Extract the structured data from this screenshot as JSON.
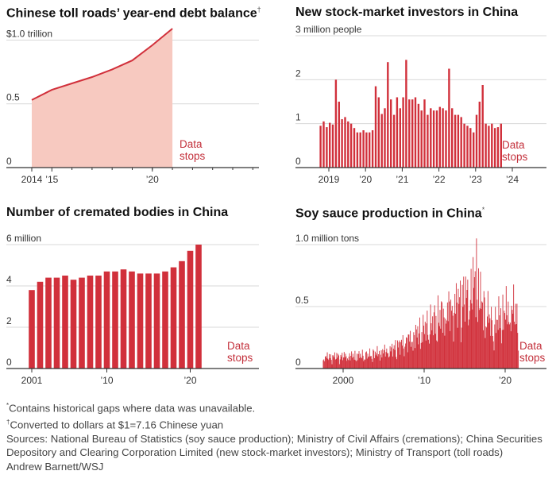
{
  "colors": {
    "accent": "#d1303b",
    "area_fill": "#f7c9c0",
    "grid": "#d9d9d9",
    "axis": "#333333",
    "stops_text": "#c3303b"
  },
  "chart_data": [
    {
      "id": "toll",
      "type": "area",
      "title": "Chinese toll roads’ year-end debt balance",
      "title_mark": "†",
      "unit_label": "$1.0 trillion",
      "y_ticks": [
        {
          "v": 0,
          "label": "0"
        },
        {
          "v": 0.5,
          "label": "0.5"
        },
        {
          "v": 1.0,
          "label": "$1.0 trillion"
        }
      ],
      "x_ticks": [
        {
          "v": 2014,
          "label": "2014"
        },
        {
          "v": 2015,
          "label": "’15"
        },
        {
          "v": 2020,
          "label": "’20"
        }
      ],
      "x": [
        2014,
        2015,
        2016,
        2017,
        2018,
        2019,
        2020,
        2021
      ],
      "y": [
        0.53,
        0.61,
        0.66,
        0.71,
        0.77,
        0.84,
        0.96,
        1.09
      ],
      "ylim": [
        0,
        1.09
      ],
      "stops_label": [
        "Data",
        "stops"
      ]
    },
    {
      "id": "investors",
      "type": "bar",
      "title": "New stock-market investors in China",
      "unit_label": "3 million people",
      "y_ticks": [
        {
          "v": 0,
          "label": "0"
        },
        {
          "v": 1,
          "label": "1"
        },
        {
          "v": 2,
          "label": "2"
        },
        {
          "v": 3,
          "label": "3 million people"
        }
      ],
      "x_ticks": [
        {
          "v": 2019,
          "label": "2019"
        },
        {
          "v": 2020,
          "label": "’20"
        },
        {
          "v": 2021,
          "label": "’21"
        },
        {
          "v": 2022,
          "label": "’22"
        },
        {
          "v": 2023,
          "label": "’23"
        },
        {
          "v": 2024,
          "label": "’24"
        }
      ],
      "x_start": 2018.75,
      "values": [
        0.95,
        1.05,
        0.92,
        1.02,
        0.98,
        2.0,
        1.5,
        1.1,
        1.15,
        1.05,
        1.0,
        0.9,
        0.8,
        0.8,
        0.85,
        0.8,
        0.8,
        0.85,
        1.85,
        1.6,
        1.22,
        1.35,
        2.4,
        1.55,
        1.2,
        1.6,
        1.35,
        1.6,
        2.45,
        1.55,
        1.55,
        1.6,
        1.45,
        1.3,
        1.55,
        1.2,
        1.35,
        1.3,
        1.3,
        1.38,
        1.35,
        1.3,
        2.25,
        1.35,
        1.2,
        1.2,
        1.15,
        1.0,
        0.95,
        0.9,
        0.8,
        1.2,
        1.5,
        1.88,
        1.0,
        0.95,
        1.0,
        0.9,
        0.92,
        1.0
      ],
      "ylim": [
        0,
        3
      ],
      "stops_label": [
        "Data",
        "stops"
      ]
    },
    {
      "id": "cremated",
      "type": "bar",
      "title": "Number of cremated bodies in China",
      "unit_label": "6 million",
      "y_ticks": [
        {
          "v": 0,
          "label": "0"
        },
        {
          "v": 2,
          "label": "2"
        },
        {
          "v": 4,
          "label": "4"
        },
        {
          "v": 6,
          "label": "6 million"
        }
      ],
      "x_ticks": [
        {
          "v": 2001,
          "label": "2001"
        },
        {
          "v": 2010,
          "label": "’10"
        },
        {
          "v": 2020,
          "label": "’20"
        }
      ],
      "categories": [
        2001,
        2002,
        2003,
        2004,
        2005,
        2006,
        2007,
        2008,
        2009,
        2010,
        2011,
        2012,
        2013,
        2014,
        2015,
        2016,
        2017,
        2018,
        2019,
        2020,
        2021
      ],
      "values": [
        3.8,
        4.2,
        4.4,
        4.4,
        4.5,
        4.3,
        4.4,
        4.5,
        4.5,
        4.7,
        4.7,
        4.8,
        4.7,
        4.6,
        4.6,
        4.6,
        4.7,
        4.9,
        5.2,
        5.7,
        6.0
      ],
      "ylim": [
        0,
        6
      ],
      "stops_label": [
        "Data",
        "stops"
      ]
    },
    {
      "id": "soy",
      "type": "bar",
      "title": "Soy sauce production in China",
      "title_mark": "*",
      "unit_label": "1.0 million tons",
      "y_ticks": [
        {
          "v": 0,
          "label": "0"
        },
        {
          "v": 0.5,
          "label": "0.5"
        },
        {
          "v": 1.0,
          "label": "1.0 million tons"
        }
      ],
      "x_ticks": [
        {
          "v": 2000,
          "label": "2000"
        },
        {
          "v": 2010,
          "label": "’10"
        },
        {
          "v": 2020,
          "label": "’20"
        }
      ],
      "x_start": 1997.5,
      "x_end": 2021.6,
      "anchors": [
        [
          1997.5,
          0.12
        ],
        [
          2000,
          0.13
        ],
        [
          2003,
          0.14
        ],
        [
          2006,
          0.2
        ],
        [
          2008,
          0.3
        ],
        [
          2010,
          0.42
        ],
        [
          2012,
          0.55
        ],
        [
          2014,
          0.68
        ],
        [
          2015.5,
          0.78
        ],
        [
          2016.5,
          0.95
        ],
        [
          2017,
          0.68
        ],
        [
          2018,
          0.55
        ],
        [
          2018.5,
          0.4
        ],
        [
          2019,
          0.52
        ],
        [
          2020,
          0.6
        ],
        [
          2021,
          0.62
        ],
        [
          2021.6,
          0.5
        ]
      ],
      "peak_value": 1.05,
      "ylim": [
        0,
        1.0
      ],
      "stops_label": [
        "Data",
        "stops"
      ]
    }
  ],
  "notes": {
    "note1": "Contains historical gaps where data was unavailable.",
    "note1_mark": "*",
    "note2": "Converted to dollars at $1=7.16 Chinese yuan",
    "note2_mark": "†",
    "sources": "Sources: National Bureau of Statistics (soy sauce production); Ministry of Civil Affairs (cremations); China Securities Depository and Clearing Corporation Limited (new stock-market investors); Ministry of Transport (toll roads)",
    "credit": "Andrew Barnett/WSJ"
  }
}
